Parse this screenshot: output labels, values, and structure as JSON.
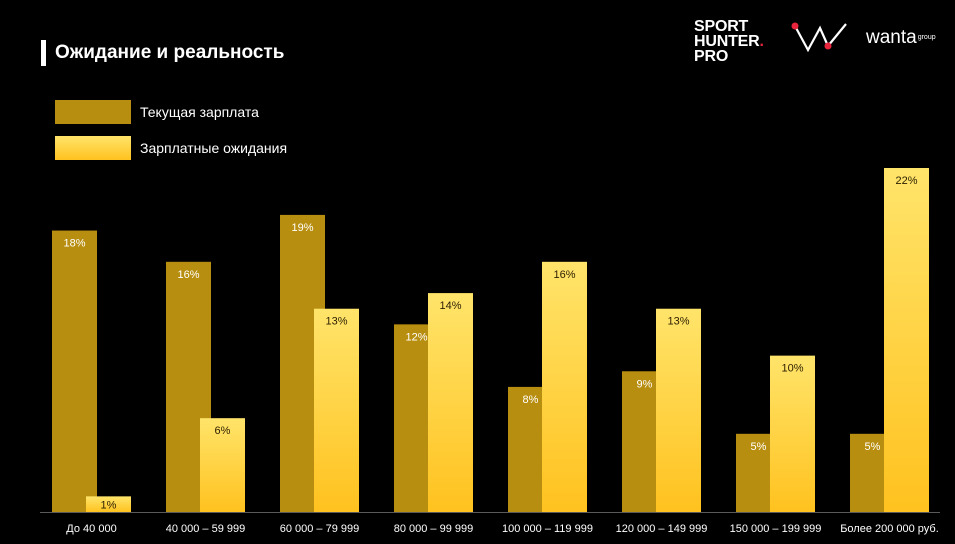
{
  "slide": {
    "title": "Ожидание и реальность"
  },
  "logos": {
    "sporthunter": {
      "line1": "SPORT",
      "line2": "HUNTER",
      "line2_dot": ".",
      "line3": "PRO"
    },
    "wanta": {
      "name": "wanta",
      "suffix": "group"
    }
  },
  "colors": {
    "background": "#000000",
    "current": "#b88e10",
    "expected_top": "#ffe46a",
    "expected_bottom": "#ffc21f",
    "accent_red": "#e8253c"
  },
  "chart_data": {
    "type": "bar",
    "categories": [
      "До 40 000",
      "40 000 – 59 999",
      "60 000 – 79 999",
      "80 000 – 99 999",
      "100 000 – 119 999",
      "120 000 – 149 999",
      "150 000 – 199 999",
      "Более 200 000 руб."
    ],
    "series": [
      {
        "name": "Текущая зарплата",
        "values": [
          18,
          16,
          19,
          12,
          8,
          9,
          5,
          5
        ],
        "labels": [
          "18%",
          "16%",
          "19%",
          "12%",
          "8%",
          "9%",
          "5%",
          "5%"
        ],
        "color": "#b88e10"
      },
      {
        "name": "Зарплатные ожидания",
        "values": [
          1,
          6,
          13,
          14,
          16,
          13,
          10,
          22
        ],
        "labels": [
          "1%",
          "6%",
          "13%",
          "14%",
          "16%",
          "13%",
          "10%",
          "22%"
        ],
        "color": "#ffc21f"
      }
    ],
    "ylim": [
      0,
      22
    ],
    "grid": false,
    "legend_position": "top-left"
  }
}
